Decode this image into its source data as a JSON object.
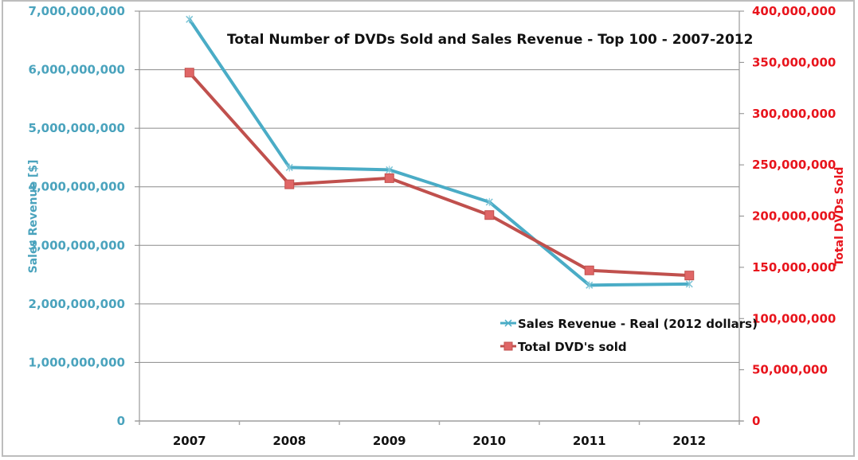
{
  "chart_data": {
    "type": "line",
    "title": "Total Number of DVDs Sold and Sales Revenue - Top 100 - 2007-2012",
    "xlabel": "",
    "categories": [
      "2007",
      "2008",
      "2009",
      "2010",
      "2011",
      "2012"
    ],
    "y_left": {
      "label": "Sales Revenue [$]",
      "ylim": [
        0,
        7000000000
      ],
      "ticks": [
        0,
        1000000000,
        2000000000,
        3000000000,
        4000000000,
        5000000000,
        6000000000,
        7000000000
      ],
      "tick_labels": [
        "0",
        "1,000,000,000",
        "2,000,000,000",
        "3,000,000,000",
        "4,000,000,000",
        "5,000,000,000",
        "6,000,000,000",
        "7,000,000,000"
      ],
      "color": "#4aa3bd"
    },
    "y_right": {
      "label": "Total DVDs Sold",
      "ylim": [
        0,
        400000000
      ],
      "ticks": [
        0,
        50000000,
        100000000,
        150000000,
        200000000,
        250000000,
        300000000,
        350000000,
        400000000
      ],
      "tick_labels": [
        "0",
        "50,000,000",
        "100,000,000",
        "150,000,000",
        "200,000,000",
        "250,000,000",
        "300,000,000",
        "350,000,000",
        "400,000,000"
      ],
      "color": "#e8141c"
    },
    "series": [
      {
        "name": "Sales Revenue - Real (2012 dollars)",
        "axis": "left",
        "marker": "x",
        "color": "#4aacc6",
        "values": [
          6860000000,
          4330000000,
          4290000000,
          3740000000,
          2320000000,
          2340000000
        ]
      },
      {
        "name": "Total DVD's sold",
        "axis": "right",
        "marker": "square",
        "color": "#c0504d",
        "values": [
          340000000,
          231000000,
          237000000,
          201000000,
          147000000,
          142000000
        ]
      }
    ],
    "grid": true,
    "legend_position": "bottom-right"
  }
}
